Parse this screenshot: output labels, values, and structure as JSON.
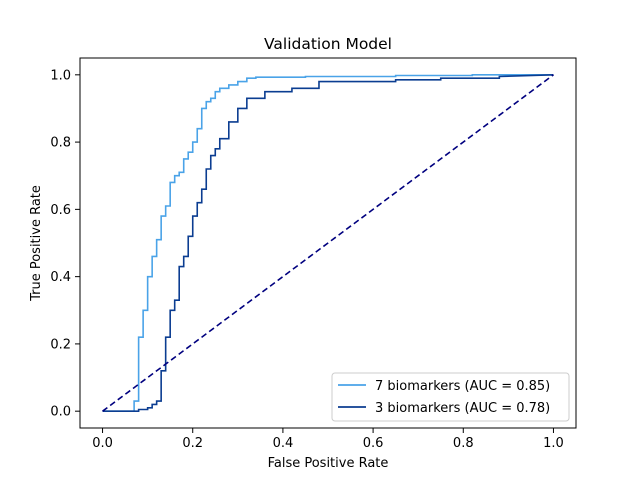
{
  "chart_data": {
    "type": "line",
    "title": "Validation Model",
    "xlabel": "False Positive Rate",
    "ylabel": "True Positive Rate",
    "xlim": [
      -0.05,
      1.05
    ],
    "ylim": [
      -0.05,
      1.05
    ],
    "xticks": [
      0.0,
      0.2,
      0.4,
      0.6,
      0.8,
      1.0
    ],
    "xtick_labels": [
      "0.0",
      "0.2",
      "0.4",
      "0.6",
      "0.8",
      "1.0"
    ],
    "yticks": [
      0.0,
      0.2,
      0.4,
      0.6,
      0.8,
      1.0
    ],
    "ytick_labels": [
      "0.0",
      "0.2",
      "0.4",
      "0.6",
      "0.8",
      "1.0"
    ],
    "grid": false,
    "legend_position": "lower-right",
    "series": [
      {
        "name": "7 biomarkers (AUC = 0.85)",
        "color": "#4aa3e8",
        "style": "step",
        "x": [
          0.0,
          0.07,
          0.07,
          0.08,
          0.08,
          0.09,
          0.09,
          0.1,
          0.1,
          0.11,
          0.11,
          0.12,
          0.12,
          0.13,
          0.13,
          0.14,
          0.14,
          0.15,
          0.15,
          0.16,
          0.16,
          0.17,
          0.17,
          0.18,
          0.18,
          0.19,
          0.19,
          0.2,
          0.2,
          0.21,
          0.21,
          0.22,
          0.22,
          0.23,
          0.23,
          0.24,
          0.24,
          0.25,
          0.25,
          0.26,
          0.26,
          0.28,
          0.28,
          0.3,
          0.3,
          0.32,
          0.32,
          0.34,
          0.34,
          0.45,
          0.45,
          0.65,
          0.65,
          0.82,
          0.82,
          0.92,
          0.92,
          1.0
        ],
        "y": [
          0.0,
          0.0,
          0.03,
          0.03,
          0.22,
          0.22,
          0.3,
          0.3,
          0.4,
          0.4,
          0.46,
          0.46,
          0.51,
          0.51,
          0.58,
          0.58,
          0.61,
          0.61,
          0.68,
          0.68,
          0.7,
          0.7,
          0.71,
          0.71,
          0.75,
          0.75,
          0.77,
          0.77,
          0.8,
          0.8,
          0.84,
          0.84,
          0.9,
          0.9,
          0.92,
          0.92,
          0.93,
          0.93,
          0.95,
          0.95,
          0.96,
          0.96,
          0.97,
          0.97,
          0.98,
          0.98,
          0.99,
          0.99,
          0.993,
          0.993,
          0.995,
          0.995,
          0.998,
          0.998,
          1.0,
          1.0,
          1.0,
          1.0
        ]
      },
      {
        "name": "3 biomarkers (AUC = 0.78)",
        "color": "#0b3d91",
        "style": "step",
        "x": [
          0.0,
          0.08,
          0.08,
          0.1,
          0.1,
          0.11,
          0.11,
          0.12,
          0.12,
          0.13,
          0.13,
          0.14,
          0.14,
          0.15,
          0.15,
          0.16,
          0.16,
          0.17,
          0.17,
          0.18,
          0.18,
          0.19,
          0.19,
          0.2,
          0.2,
          0.21,
          0.21,
          0.22,
          0.22,
          0.23,
          0.23,
          0.24,
          0.24,
          0.25,
          0.25,
          0.26,
          0.26,
          0.28,
          0.28,
          0.3,
          0.3,
          0.32,
          0.32,
          0.36,
          0.36,
          0.42,
          0.42,
          0.48,
          0.48,
          0.65,
          0.65,
          0.75,
          0.75,
          0.88,
          0.88,
          1.0
        ],
        "y": [
          0.0,
          0.0,
          0.005,
          0.005,
          0.01,
          0.01,
          0.02,
          0.02,
          0.03,
          0.03,
          0.12,
          0.12,
          0.22,
          0.22,
          0.3,
          0.3,
          0.33,
          0.33,
          0.43,
          0.43,
          0.46,
          0.46,
          0.52,
          0.52,
          0.58,
          0.58,
          0.62,
          0.62,
          0.66,
          0.66,
          0.72,
          0.72,
          0.76,
          0.76,
          0.78,
          0.78,
          0.81,
          0.81,
          0.86,
          0.86,
          0.9,
          0.9,
          0.93,
          0.93,
          0.95,
          0.95,
          0.96,
          0.96,
          0.98,
          0.98,
          0.985,
          0.985,
          0.99,
          0.99,
          0.995,
          1.0
        ]
      },
      {
        "name": "",
        "color": "#00007f",
        "style": "dashed",
        "x": [
          0.0,
          1.0
        ],
        "y": [
          0.0,
          1.0
        ]
      }
    ]
  }
}
